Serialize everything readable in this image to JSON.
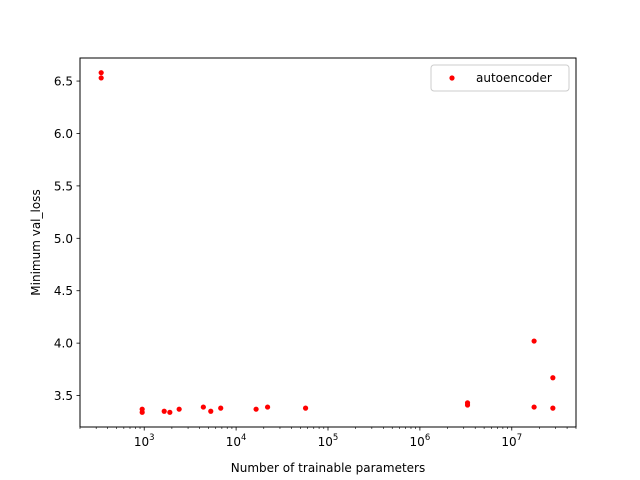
{
  "chart_data": {
    "type": "scatter",
    "xscale": "log",
    "xlabel": "Number of trainable parameters",
    "ylabel": "Minimum val_loss",
    "xlim": [
      200,
      50000000
    ],
    "ylim": [
      3.2,
      6.72
    ],
    "xticks": [
      {
        "value": 1000,
        "base": "10",
        "exp": "3"
      },
      {
        "value": 10000,
        "base": "10",
        "exp": "4"
      },
      {
        "value": 100000,
        "base": "10",
        "exp": "5"
      },
      {
        "value": 1000000,
        "base": "10",
        "exp": "6"
      },
      {
        "value": 10000000,
        "base": "10",
        "exp": "7"
      }
    ],
    "yticks": [
      {
        "value": 3.5,
        "label": "3.5"
      },
      {
        "value": 4.0,
        "label": "4.0"
      },
      {
        "value": 4.5,
        "label": "4.5"
      },
      {
        "value": 5.0,
        "label": "5.0"
      },
      {
        "value": 5.5,
        "label": "5.5"
      },
      {
        "value": 6.0,
        "label": "6.0"
      },
      {
        "value": 6.5,
        "label": "6.5"
      }
    ],
    "grid": false,
    "legend_position": "top-right",
    "series": [
      {
        "name": "autoencoder",
        "color": "#ff0000",
        "marker": "circle",
        "points": [
          {
            "x": 340,
            "y": 6.58
          },
          {
            "x": 340,
            "y": 6.53
          },
          {
            "x": 950,
            "y": 3.37
          },
          {
            "x": 950,
            "y": 3.34
          },
          {
            "x": 1650,
            "y": 3.35
          },
          {
            "x": 1900,
            "y": 3.34
          },
          {
            "x": 2400,
            "y": 3.37
          },
          {
            "x": 4400,
            "y": 3.39
          },
          {
            "x": 5300,
            "y": 3.35
          },
          {
            "x": 6800,
            "y": 3.38
          },
          {
            "x": 16500,
            "y": 3.37
          },
          {
            "x": 22000,
            "y": 3.39
          },
          {
            "x": 57000,
            "y": 3.38
          },
          {
            "x": 3300000,
            "y": 3.43
          },
          {
            "x": 3300000,
            "y": 3.41
          },
          {
            "x": 17500000,
            "y": 4.02
          },
          {
            "x": 17500000,
            "y": 3.39
          },
          {
            "x": 28000000,
            "y": 3.67
          },
          {
            "x": 28000000,
            "y": 3.38
          }
        ]
      }
    ]
  }
}
